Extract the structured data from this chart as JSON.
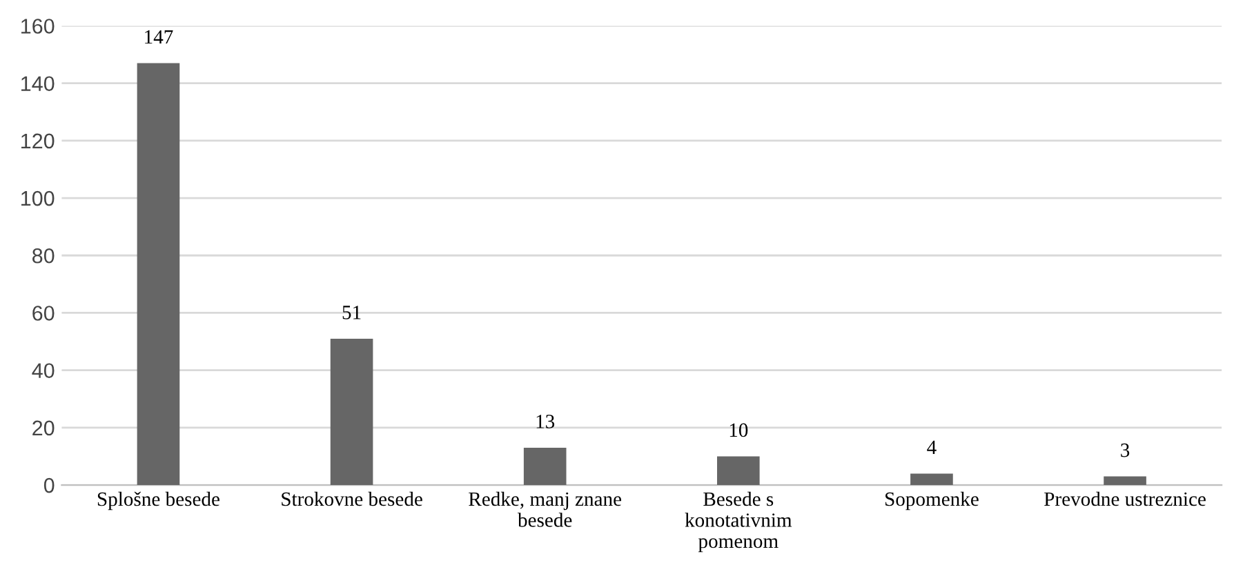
{
  "chart_data": {
    "type": "bar",
    "categories": [
      "Splošne besede",
      "Strokovne besede",
      "Redke, manj znane\nbesede",
      "Besede s\nkonotativnim\npomenom",
      "Sopomenke",
      "Prevodne ustreznice"
    ],
    "values": [
      147,
      51,
      13,
      10,
      4,
      3
    ],
    "color": "#666666",
    "ylim": [
      0,
      160
    ],
    "yticks": [
      0,
      20,
      40,
      60,
      80,
      100,
      120,
      140,
      160
    ],
    "grid": "y",
    "data_labels": true
  }
}
